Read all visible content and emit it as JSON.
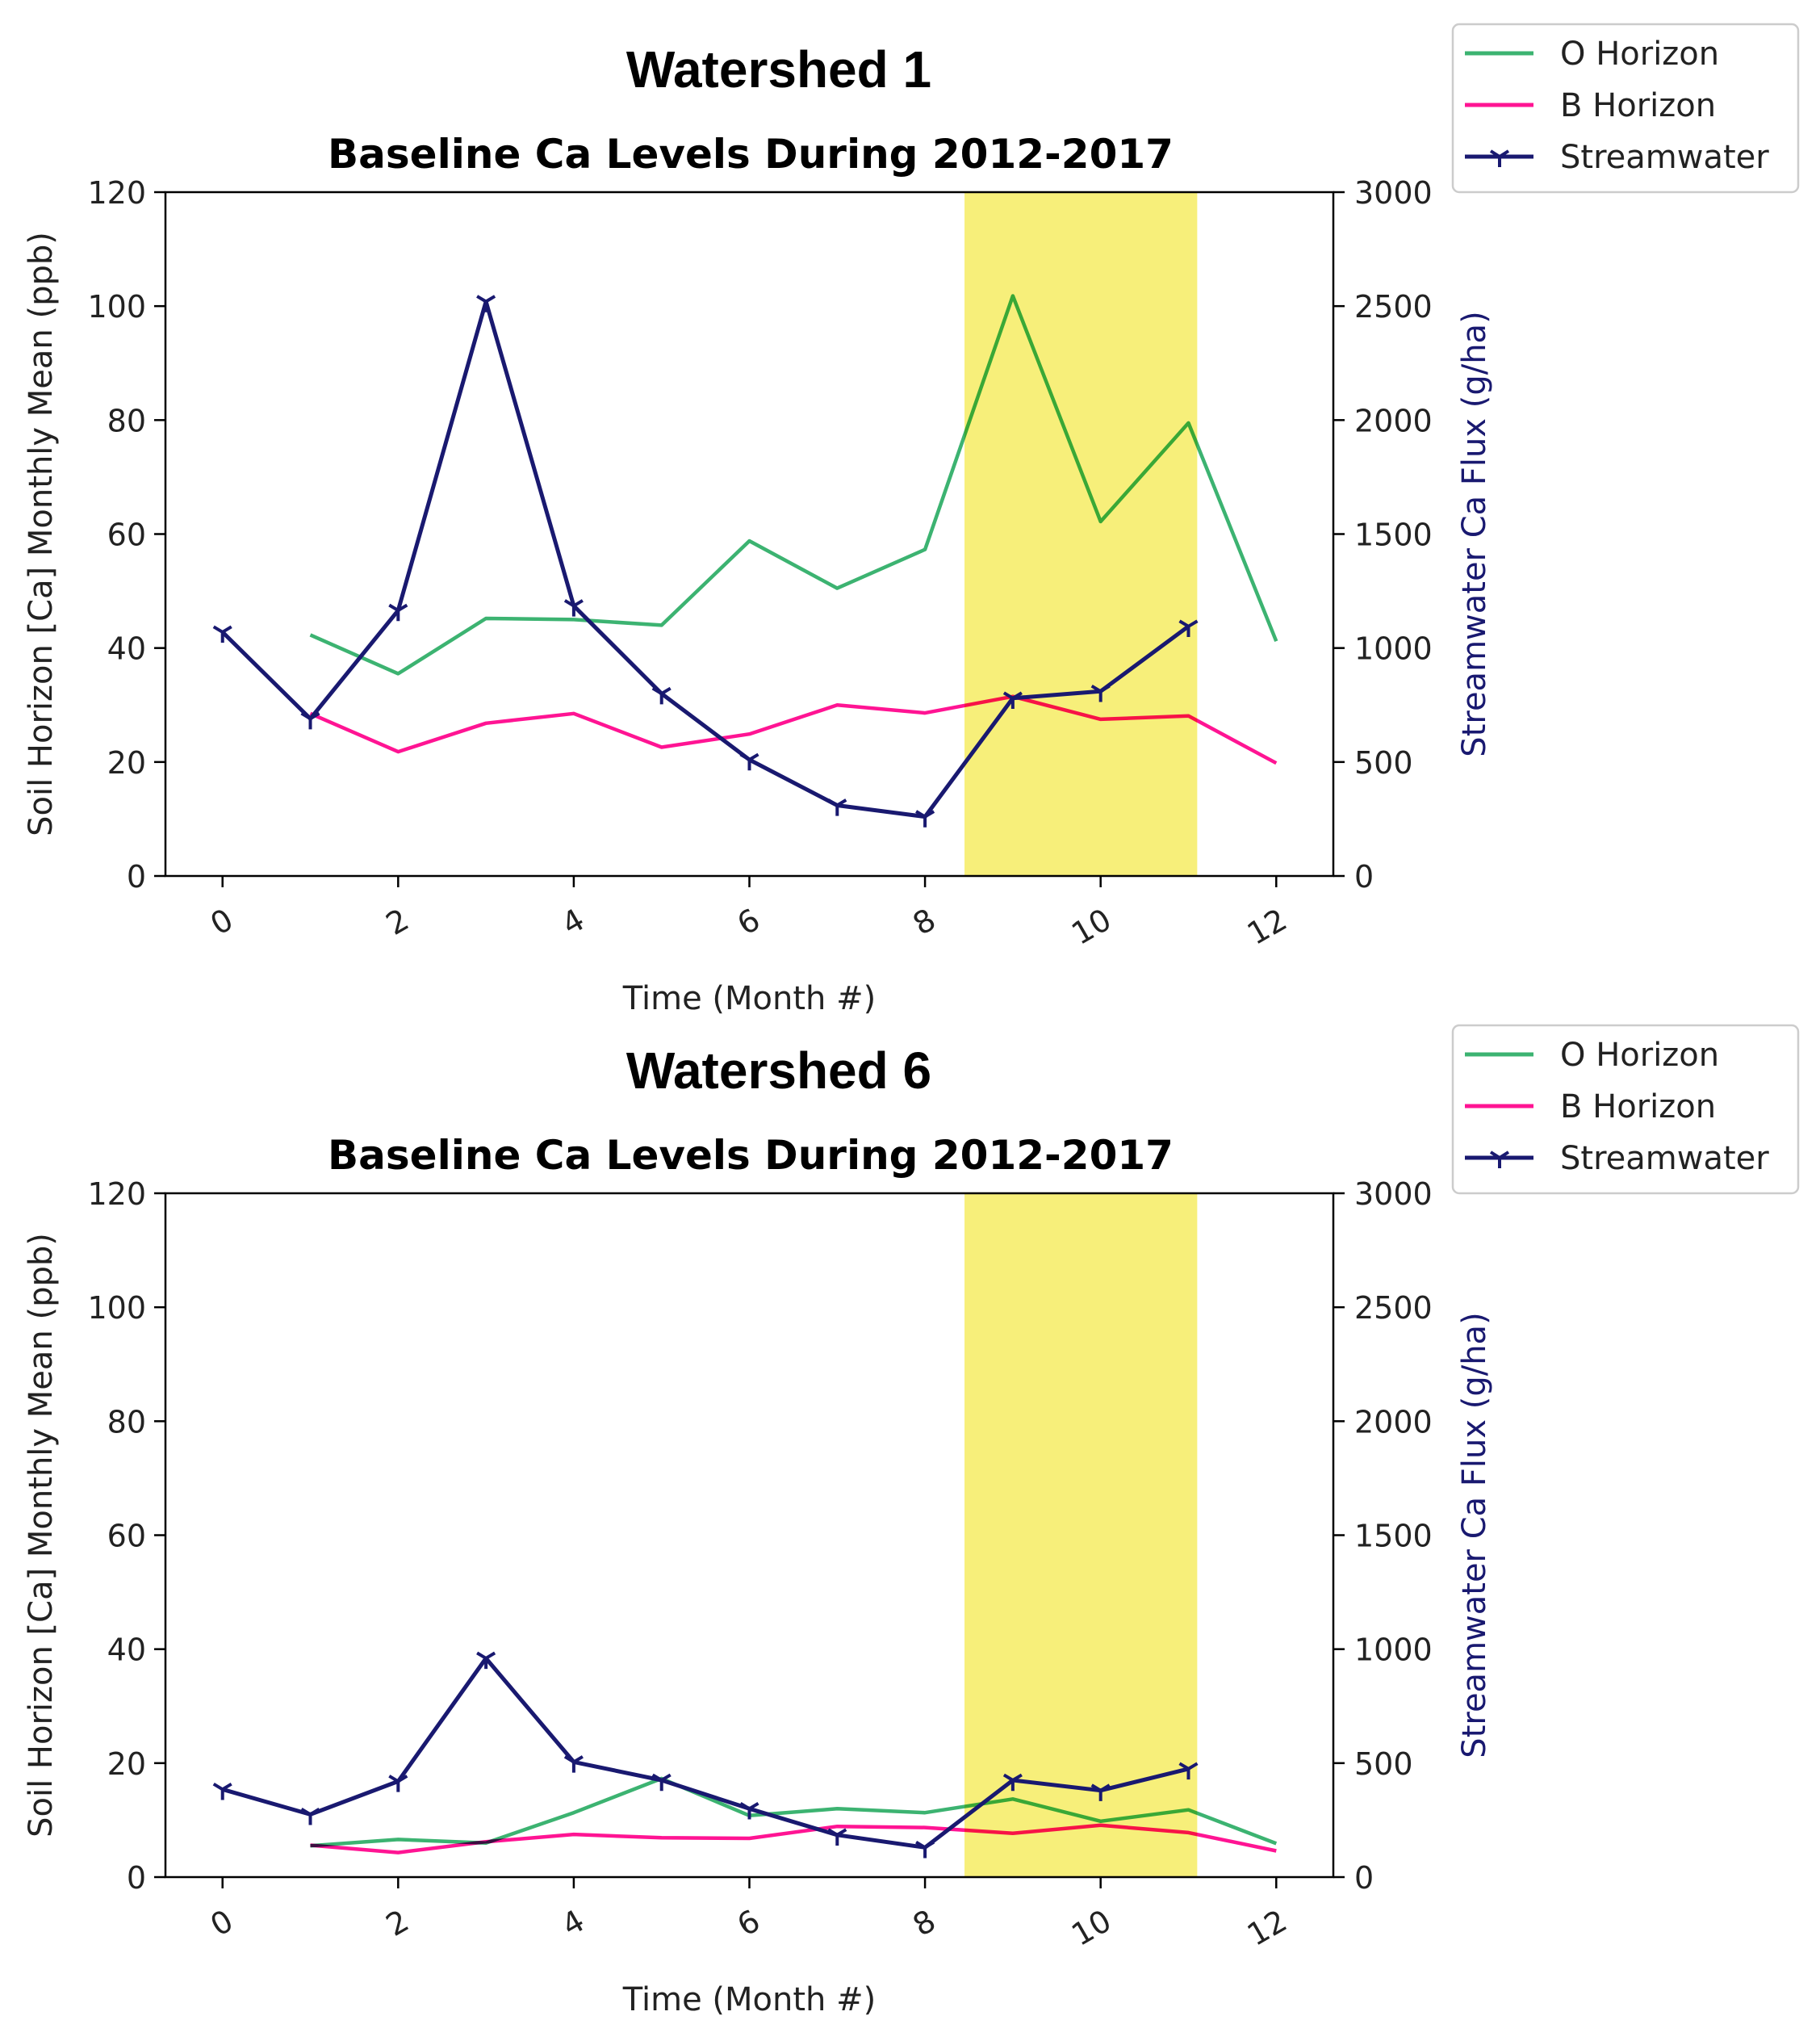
{
  "colors": {
    "o_horizon": "#3cb371",
    "b_horizon": "#ff1493",
    "streamwater": "#191970",
    "highlight": "#f7ef7a"
  },
  "chart_data": [
    {
      "type": "line",
      "figure_title": "Watershed 1",
      "title": "Baseline Ca Levels During 2012-2017",
      "xlabel": "Time (Month #)",
      "ylabel": "Soil Horizon [Ca] Monthly Mean (ppb)",
      "ylabel_right": "Streamwater Ca Flux (g/ha)",
      "xlim": [
        -0.65,
        12.65
      ],
      "ylim": [
        0,
        120
      ],
      "ylim_right": [
        0,
        3000
      ],
      "xticks": [
        "0",
        "2",
        "4",
        "6",
        "8",
        "10",
        "12"
      ],
      "yticks": [
        "0",
        "20",
        "40",
        "60",
        "80",
        "100",
        "120"
      ],
      "yticks_right": [
        "0",
        "500",
        "1000",
        "1500",
        "2000",
        "2500",
        "3000"
      ],
      "highlight_span": [
        8.45,
        11.1
      ],
      "legend_position": "outside-top-right",
      "series": [
        {
          "name": "O Horizon",
          "axis": "left",
          "x": [
            1,
            2,
            3,
            4,
            5,
            6,
            7,
            8,
            9,
            10,
            11,
            12
          ],
          "values": [
            42.3,
            35.5,
            45.2,
            45.0,
            44.0,
            58.8,
            50.5,
            57.3,
            101.8,
            62.2,
            79.5,
            41.2
          ]
        },
        {
          "name": "B Horizon",
          "axis": "left",
          "x": [
            1,
            2,
            3,
            4,
            5,
            6,
            7,
            8,
            9,
            10,
            11,
            12
          ],
          "values": [
            28.5,
            21.8,
            26.8,
            28.5,
            22.6,
            24.9,
            30.0,
            28.6,
            31.5,
            27.5,
            28.1,
            19.8
          ]
        },
        {
          "name": "Streamwater",
          "axis": "right",
          "marker": "tri_down",
          "x": [
            0,
            1,
            2,
            3,
            4,
            5,
            6,
            7,
            8,
            9,
            10,
            11
          ],
          "values": [
            1070,
            690,
            1165,
            2520,
            1185,
            800,
            510,
            310,
            260,
            780,
            810,
            1095
          ]
        }
      ]
    },
    {
      "type": "line",
      "figure_title": "Watershed 6",
      "title": "Baseline Ca Levels During 2012-2017",
      "xlabel": "Time (Month #)",
      "ylabel": "Soil Horizon [Ca] Monthly Mean (ppb)",
      "ylabel_right": "Streamwater Ca Flux (g/ha)",
      "xlim": [
        -0.65,
        12.65
      ],
      "ylim": [
        0,
        120
      ],
      "ylim_right": [
        0,
        3000
      ],
      "xticks": [
        "0",
        "2",
        "4",
        "6",
        "8",
        "10",
        "12"
      ],
      "yticks": [
        "0",
        "20",
        "40",
        "60",
        "80",
        "100",
        "120"
      ],
      "yticks_right": [
        "0",
        "500",
        "1000",
        "1500",
        "2000",
        "2500",
        "3000"
      ],
      "highlight_span": [
        8.45,
        11.1
      ],
      "legend_position": "outside-top-right",
      "series": [
        {
          "name": "O Horizon",
          "axis": "left",
          "x": [
            1,
            2,
            3,
            4,
            5,
            6,
            7,
            8,
            9,
            10,
            11,
            12
          ],
          "values": [
            5.5,
            6.6,
            6.0,
            11.3,
            17.3,
            10.8,
            12.0,
            11.3,
            13.7,
            9.8,
            11.8,
            5.9
          ]
        },
        {
          "name": "B Horizon",
          "axis": "left",
          "x": [
            1,
            2,
            3,
            4,
            5,
            6,
            7,
            8,
            9,
            10,
            11,
            12
          ],
          "values": [
            5.6,
            4.3,
            6.2,
            7.5,
            6.9,
            6.8,
            8.9,
            8.7,
            7.7,
            9.1,
            7.8,
            4.6
          ]
        },
        {
          "name": "Streamwater",
          "axis": "right",
          "marker": "tri_down",
          "x": [
            0,
            1,
            2,
            3,
            4,
            5,
            6,
            7,
            8,
            9,
            10,
            11
          ],
          "values": [
            385,
            275,
            420,
            960,
            505,
            425,
            300,
            185,
            130,
            425,
            380,
            475
          ]
        }
      ]
    }
  ]
}
